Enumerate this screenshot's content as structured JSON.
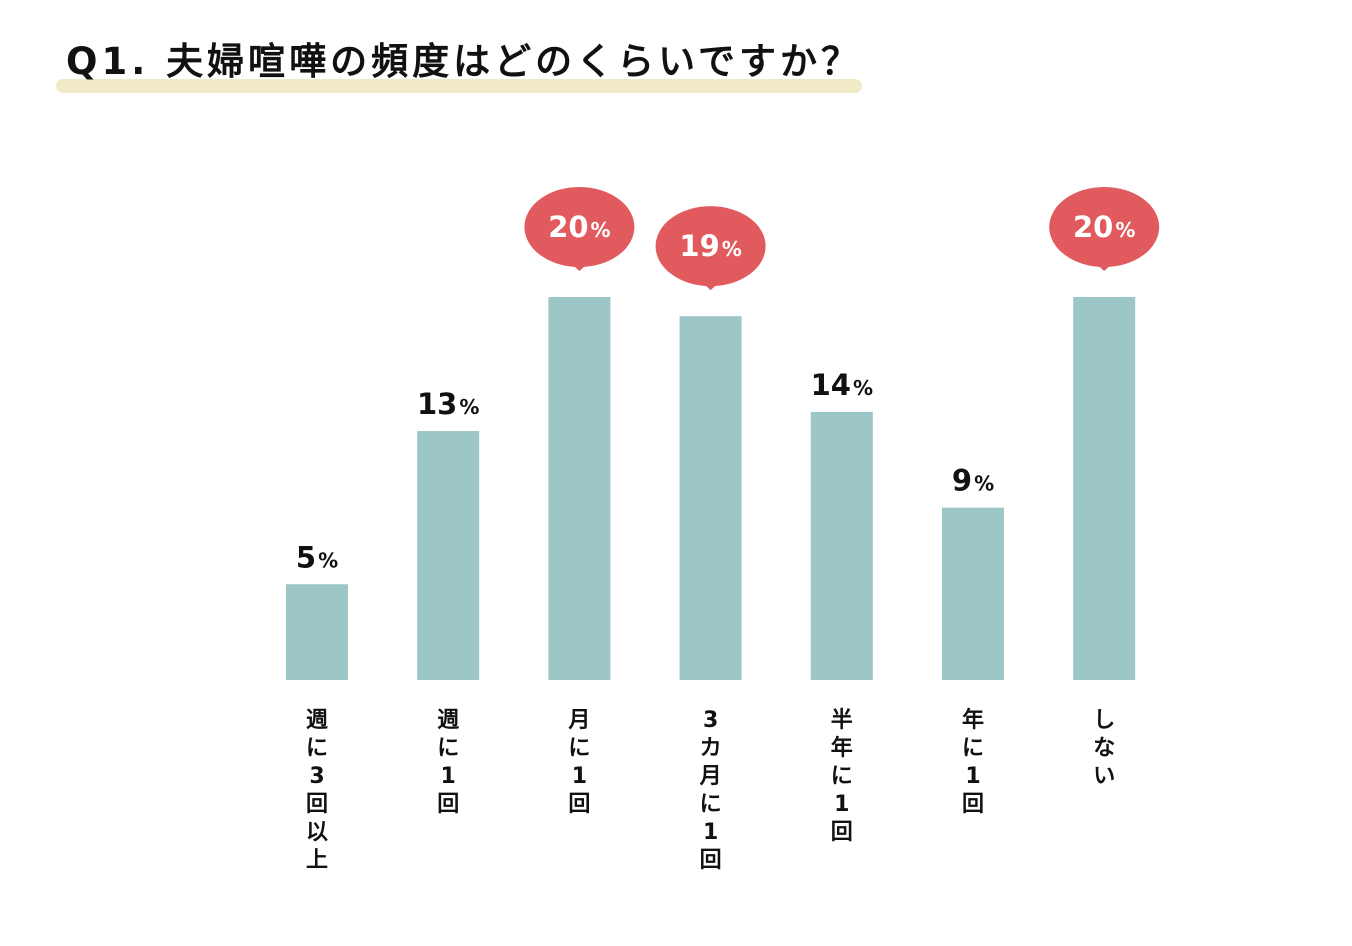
{
  "title": "Q1. 夫婦喧嘩の頻度はどのくらいですか？",
  "colors": {
    "bar": "#9dc6c6",
    "bubble": "#e05a5e",
    "highlight": "#f0ebc6",
    "text": "#111111",
    "bubble_text": "#ffffff"
  },
  "chart_data": {
    "type": "bar",
    "categories": [
      "週に3回以上",
      "週に1回",
      "月に1回",
      "3カ月に1回",
      "半年に1回",
      "年に1回",
      "しない"
    ],
    "values": [
      5,
      13,
      20,
      19,
      14,
      9,
      20
    ],
    "value_labels": [
      "5",
      "13",
      "20",
      "19",
      "14",
      "9",
      "20"
    ],
    "unit": "%",
    "highlighted": [
      false,
      false,
      true,
      true,
      false,
      false,
      true
    ],
    "title": "Q1. 夫婦喧嘩の頻度はどのくらいですか？",
    "xlabel": "",
    "ylabel": "",
    "ylim": [
      0,
      20
    ],
    "grid": false,
    "legend": "none",
    "label_orientation": "vertical"
  }
}
